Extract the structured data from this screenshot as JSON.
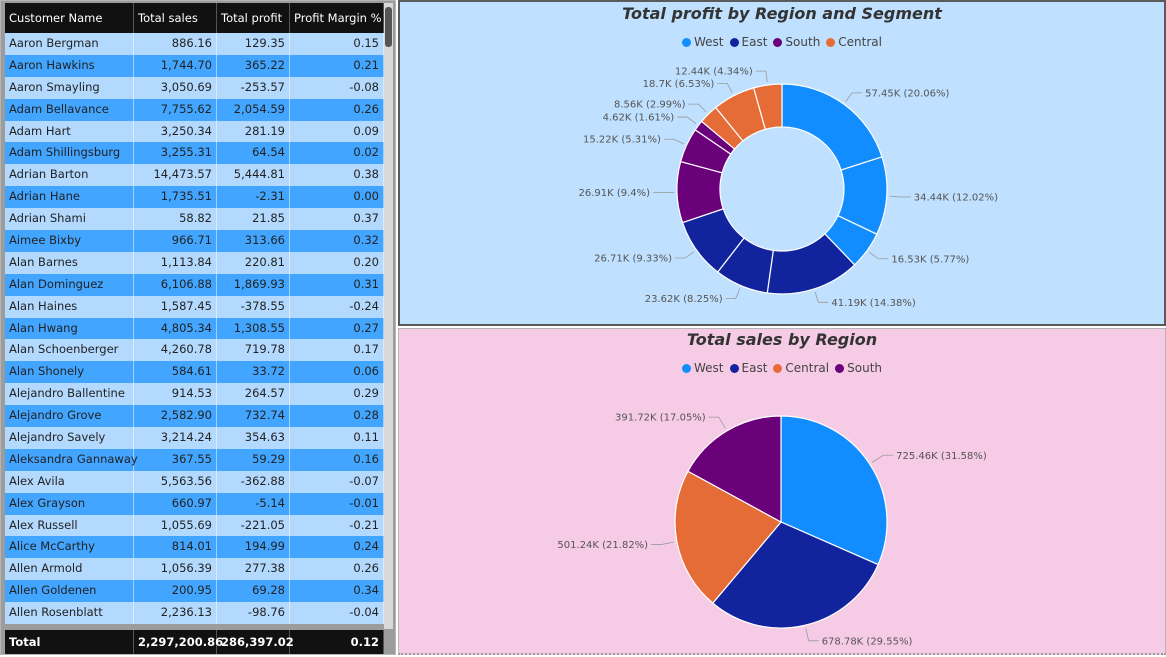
{
  "table": {
    "headers": [
      "Customer Name",
      "Total sales",
      "Total profit",
      "Profit Margin %"
    ],
    "rows": [
      [
        "Aaron Bergman",
        "886.16",
        "129.35",
        "0.15"
      ],
      [
        "Aaron Hawkins",
        "1,744.70",
        "365.22",
        "0.21"
      ],
      [
        "Aaron Smayling",
        "3,050.69",
        "-253.57",
        "-0.08"
      ],
      [
        "Adam Bellavance",
        "7,755.62",
        "2,054.59",
        "0.26"
      ],
      [
        "Adam Hart",
        "3,250.34",
        "281.19",
        "0.09"
      ],
      [
        "Adam Shillingsburg",
        "3,255.31",
        "64.54",
        "0.02"
      ],
      [
        "Adrian Barton",
        "14,473.57",
        "5,444.81",
        "0.38"
      ],
      [
        "Adrian Hane",
        "1,735.51",
        "-2.31",
        "0.00"
      ],
      [
        "Adrian Shami",
        "58.82",
        "21.85",
        "0.37"
      ],
      [
        "Aimee Bixby",
        "966.71",
        "313.66",
        "0.32"
      ],
      [
        "Alan Barnes",
        "1,113.84",
        "220.81",
        "0.20"
      ],
      [
        "Alan Dominguez",
        "6,106.88",
        "1,869.93",
        "0.31"
      ],
      [
        "Alan Haines",
        "1,587.45",
        "-378.55",
        "-0.24"
      ],
      [
        "Alan Hwang",
        "4,805.34",
        "1,308.55",
        "0.27"
      ],
      [
        "Alan Schoenberger",
        "4,260.78",
        "719.78",
        "0.17"
      ],
      [
        "Alan Shonely",
        "584.61",
        "33.72",
        "0.06"
      ],
      [
        "Alejandro Ballentine",
        "914.53",
        "264.57",
        "0.29"
      ],
      [
        "Alejandro Grove",
        "2,582.90",
        "732.74",
        "0.28"
      ],
      [
        "Alejandro Savely",
        "3,214.24",
        "354.63",
        "0.11"
      ],
      [
        "Aleksandra Gannaway",
        "367.55",
        "59.29",
        "0.16"
      ],
      [
        "Alex Avila",
        "5,563.56",
        "-362.88",
        "-0.07"
      ],
      [
        "Alex Grayson",
        "660.97",
        "-5.14",
        "-0.01"
      ],
      [
        "Alex Russell",
        "1,055.69",
        "-221.05",
        "-0.21"
      ],
      [
        "Alice McCarthy",
        "814.01",
        "194.99",
        "0.24"
      ],
      [
        "Allen Armold",
        "1,056.39",
        "277.38",
        "0.26"
      ],
      [
        "Allen Goldenen",
        "200.95",
        "69.28",
        "0.34"
      ],
      [
        "Allen Rosenblatt",
        "2,236.13",
        "-98.76",
        "-0.04"
      ]
    ],
    "total": [
      "Total",
      "2,297,200.86",
      "286,397.02",
      "0.12"
    ]
  },
  "colors": {
    "West": "#118dff",
    "East": "#12239e",
    "South": "#6b007b",
    "Central": "#e66c37"
  },
  "chart_data": [
    {
      "type": "pie",
      "variant": "donut",
      "title": "Total profit by Region and Segment",
      "legend": [
        "West",
        "East",
        "South",
        "Central"
      ],
      "legend_position": "top-center",
      "slices": [
        {
          "region": "West",
          "value": 57450,
          "label": "57.45K (20.06%)"
        },
        {
          "region": "West",
          "value": 34440,
          "label": "34.44K (12.02%)"
        },
        {
          "region": "West",
          "value": 16530,
          "label": "16.53K (5.77%)"
        },
        {
          "region": "East",
          "value": 41190,
          "label": "41.19K (14.38%)"
        },
        {
          "region": "East",
          "value": 23620,
          "label": "23.62K (8.25%)"
        },
        {
          "region": "East",
          "value": 26710,
          "label": "26.71K (9.33%)"
        },
        {
          "region": "South",
          "value": 26910,
          "label": "26.91K (9.4%)"
        },
        {
          "region": "South",
          "value": 15220,
          "label": "15.22K (5.31%)"
        },
        {
          "region": "South",
          "value": 4620,
          "label": "4.62K (1.61%)"
        },
        {
          "region": "Central",
          "value": 8560,
          "label": "8.56K (2.99%)"
        },
        {
          "region": "Central",
          "value": 18700,
          "label": "18.7K (6.53%)"
        },
        {
          "region": "Central",
          "value": 12440,
          "label": "12.44K (4.34%)"
        }
      ]
    },
    {
      "type": "pie",
      "title": "Total sales by Region",
      "legend": [
        "West",
        "East",
        "Central",
        "South"
      ],
      "legend_position": "top-center",
      "slices": [
        {
          "region": "West",
          "value": 725460,
          "label": "725.46K (31.58%)"
        },
        {
          "region": "East",
          "value": 678780,
          "label": "678.78K (29.55%)"
        },
        {
          "region": "Central",
          "value": 501240,
          "label": "501.24K (21.82%)"
        },
        {
          "region": "South",
          "value": 391720,
          "label": "391.72K (17.05%)"
        }
      ]
    }
  ]
}
